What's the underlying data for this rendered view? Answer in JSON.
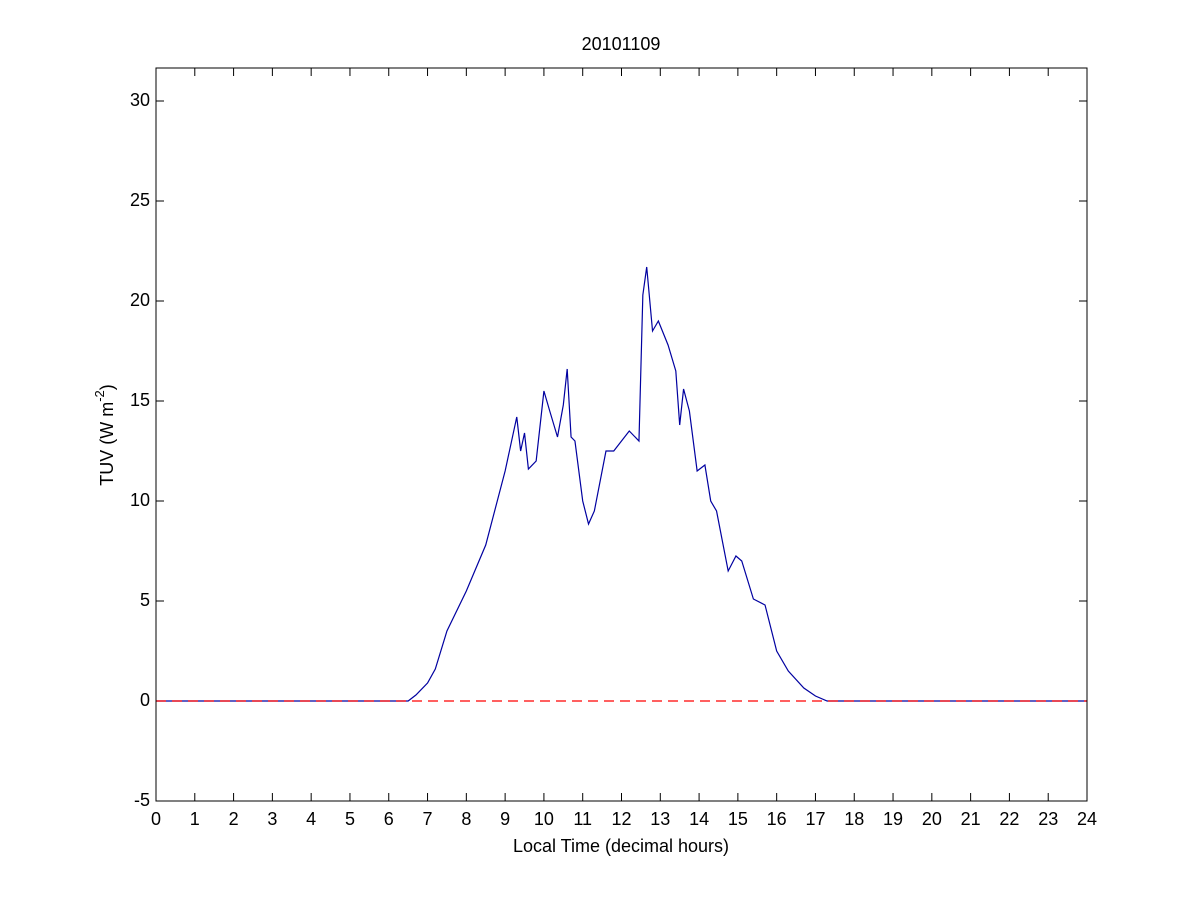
{
  "chart_data": {
    "type": "line",
    "title": "20101109",
    "xlabel": "Local Time (decimal hours)",
    "ylabel": [
      "TUV (W m",
      "-2",
      ")"
    ],
    "xlim": [
      0,
      24
    ],
    "ylim": [
      -5,
      31.65
    ],
    "xticks": [
      0,
      1,
      2,
      3,
      4,
      5,
      6,
      7,
      8,
      9,
      10,
      11,
      12,
      13,
      14,
      15,
      16,
      17,
      18,
      19,
      20,
      21,
      22,
      23,
      24
    ],
    "yticks": [
      -5,
      0,
      5,
      10,
      15,
      20,
      25,
      30
    ],
    "series": [
      {
        "color": "#0000a0",
        "dash": false,
        "x": [
          0,
          6.5,
          6.7,
          7,
          7.2,
          7.5,
          8,
          8.5,
          9,
          9.3,
          9.4,
          9.5,
          9.6,
          9.8,
          10,
          10.15,
          10.35,
          10.5,
          10.6,
          10.7,
          10.8,
          11,
          11.15,
          11.3,
          11.6,
          11.8,
          12,
          12.2,
          12.45,
          12.55,
          12.65,
          12.8,
          12.95,
          13.2,
          13.4,
          13.5,
          13.6,
          13.75,
          13.95,
          14.15,
          14.3,
          14.45,
          14.6,
          14.75,
          14.95,
          15.1,
          15.4,
          15.7,
          16,
          16.3,
          16.7,
          17,
          17.3,
          24
        ],
        "values": [
          0,
          0,
          0.3,
          0.9,
          1.6,
          3.5,
          5.5,
          7.8,
          11.5,
          14.2,
          12.5,
          13.4,
          11.6,
          12,
          15.5,
          14.5,
          13.2,
          14.8,
          16.6,
          13.2,
          13,
          10,
          8.85,
          9.5,
          12.5,
          12.5,
          13,
          13.5,
          13,
          20.3,
          21.7,
          18.5,
          19,
          17.8,
          16.5,
          13.8,
          15.6,
          14.5,
          11.5,
          11.8,
          10,
          9.5,
          8,
          6.5,
          7.25,
          7,
          5.1,
          4.8,
          2.5,
          1.5,
          0.65,
          0.25,
          0,
          0
        ]
      },
      {
        "color": "#ff0000",
        "dash": true,
        "x": [
          0,
          24
        ],
        "values": [
          0,
          0
        ]
      }
    ]
  }
}
